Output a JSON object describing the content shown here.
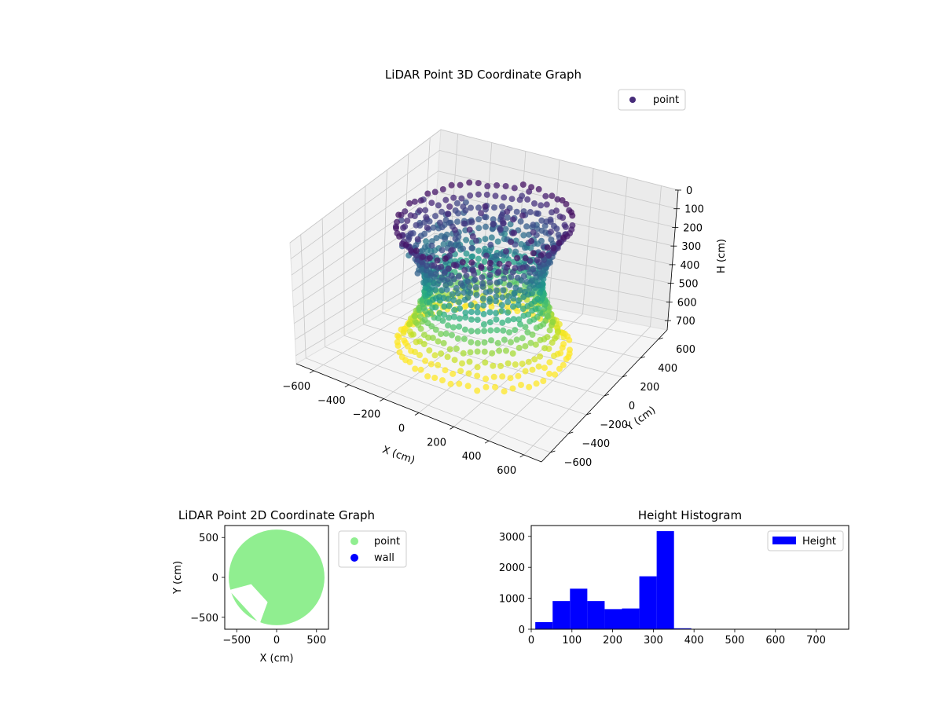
{
  "chart_data": [
    {
      "type": "scatter",
      "projection": "3d",
      "title": "LiDAR Point 3D Coordinate Graph",
      "xlabel": "X (cm)",
      "ylabel": "Y (cm)",
      "zlabel": "H (cm)",
      "xlim": [
        -700,
        700
      ],
      "ylim": [
        -700,
        700
      ],
      "zlim": [
        0,
        750
      ],
      "z_inverted": true,
      "xticks": [
        -600,
        -400,
        -200,
        0,
        200,
        400,
        600
      ],
      "yticks": [
        -600,
        -400,
        -200,
        0,
        200,
        400,
        600
      ],
      "zticks": [
        0,
        100,
        200,
        300,
        400,
        500,
        600,
        700
      ],
      "colormap": "viridis",
      "legend": {
        "entries": [
          "point"
        ],
        "position": "upper-right"
      },
      "grid": true
    },
    {
      "type": "scatter",
      "title": "LiDAR Point 2D Coordinate Graph",
      "xlabel": "X (cm)",
      "ylabel": "Y (cm)",
      "xlim": [
        -650,
        650
      ],
      "ylim": [
        -650,
        650
      ],
      "xticks": [
        -500,
        0,
        500
      ],
      "yticks": [
        -500,
        0,
        500
      ],
      "series": [
        {
          "name": "point",
          "color": "#90ee90",
          "shape": "disk",
          "center": [
            0,
            0
          ],
          "radius": 600,
          "notch_angle_deg": [
            195,
            250
          ]
        },
        {
          "name": "wall",
          "color": "#0000ff",
          "values": []
        }
      ],
      "legend": {
        "entries": [
          "point",
          "wall"
        ],
        "position": "outside-right"
      },
      "grid": false
    },
    {
      "type": "bar",
      "title": "Height Histogram",
      "xlim": [
        0,
        780
      ],
      "ylim": [
        0,
        3350
      ],
      "xticks": [
        0,
        100,
        200,
        300,
        400,
        500,
        600,
        700
      ],
      "yticks": [
        0,
        1000,
        2000,
        3000
      ],
      "bin_edges": [
        10,
        52.6,
        95.2,
        137.8,
        180.4,
        223,
        265.6,
        308.2,
        350.8,
        393.4,
        436,
        478.6,
        521.2,
        563.8,
        606.4,
        649,
        691.6,
        734.2,
        776.8
      ],
      "series": [
        {
          "name": "Height",
          "color": "#0000ff",
          "values": [
            230,
            910,
            1310,
            910,
            650,
            670,
            1710,
            3170,
            30,
            5,
            3,
            2,
            2,
            1,
            1,
            1,
            1,
            1
          ]
        }
      ],
      "legend": {
        "entries": [
          "Height"
        ],
        "position": "upper-right"
      },
      "grid": false
    }
  ]
}
